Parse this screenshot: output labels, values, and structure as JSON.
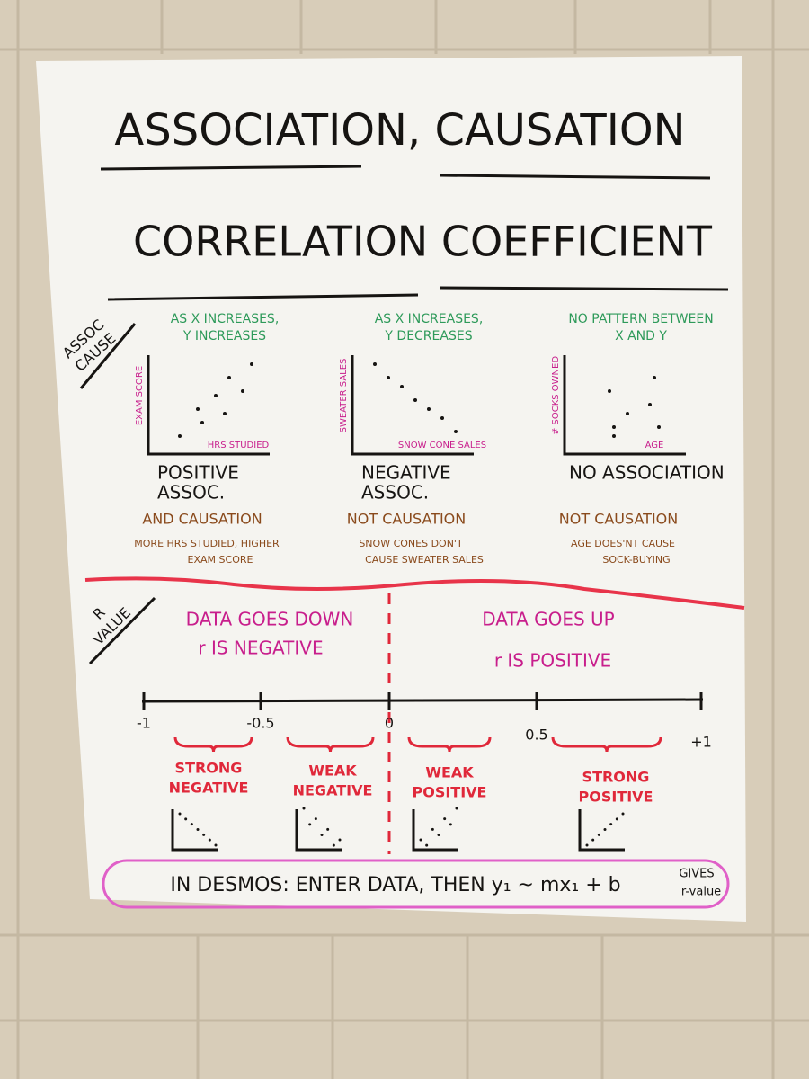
{
  "title": {
    "line1": "ASSOCIATION, CAUSATION",
    "line2": "CORRELATION COEFFICIENT"
  },
  "association_section": {
    "label": [
      "ASSOC",
      "CAUSE"
    ],
    "panels": [
      {
        "description": [
          "AS X INCREASES,",
          "Y INCREASES"
        ],
        "y_axis": "EXAM SCORE",
        "x_axis": "HRS STUDIED",
        "association": [
          "POSITIVE",
          "ASSOC."
        ],
        "causation": "AND CAUSATION",
        "explanation": [
          "MORE HRS STUDIED, HIGHER",
          "EXAM SCORE"
        ]
      },
      {
        "description": [
          "AS X INCREASES,",
          "Y DECREASES"
        ],
        "y_axis": "SWEATER SALES",
        "x_axis": "SNOW CONE SALES",
        "association": [
          "NEGATIVE",
          "ASSOC."
        ],
        "causation": "NOT CAUSATION",
        "explanation": [
          "SNOW CONES DON'T",
          "CAUSE SWEATER SALES"
        ]
      },
      {
        "description": [
          "NO PATTERN BETWEEN",
          "X AND Y"
        ],
        "y_axis": "# SOCKS OWNED",
        "x_axis": "AGE",
        "association": [
          "NO ASSOCIATION"
        ],
        "causation": "NOT CAUSATION",
        "explanation": [
          "AGE DOES'NT CAUSE",
          "SOCK-BUYING"
        ]
      }
    ]
  },
  "r_section": {
    "label": [
      "R",
      "VALUE"
    ],
    "negative": [
      "DATA GOES DOWN",
      "r IS NEGATIVE"
    ],
    "positive": [
      "DATA GOES UP",
      "r IS POSITIVE"
    ],
    "number_line": [
      "-1",
      "-0.5",
      "0",
      "0.5",
      "+1"
    ],
    "strengths": [
      [
        "STRONG",
        "NEGATIVE"
      ],
      [
        "WEAK",
        "NEGATIVE"
      ],
      [
        "WEAK",
        "POSITIVE"
      ],
      [
        "STRONG",
        "POSITIVE"
      ]
    ]
  },
  "footer": {
    "text": "IN DESMOS: ENTER DATA, THEN y₁ ~ mx₁ + b",
    "note": [
      "GIVES",
      "r-value"
    ]
  }
}
